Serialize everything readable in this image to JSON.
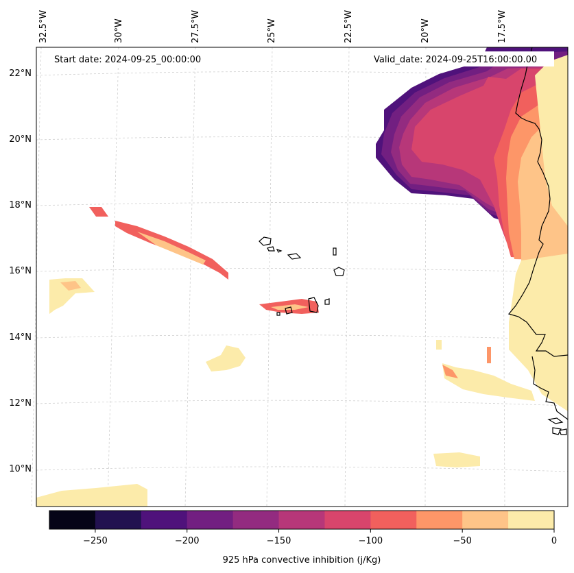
{
  "header": {
    "start_date": "Start date: 2024-09-25_00:00:00",
    "valid_date": "Valid_date: 2024-09-25T16:00:00.00"
  },
  "map": {
    "projection": "conic",
    "longitude_labels": [
      "32.5°W",
      "30°W",
      "27.5°W",
      "25°W",
      "22.5°W",
      "20°W",
      "17.5°W"
    ],
    "latitude_labels": [
      "22°N",
      "20°N",
      "18°N",
      "16°N",
      "14°N",
      "12°N",
      "10°N"
    ],
    "gridlines": true
  },
  "colorbar": {
    "label": "925 hPa convective inhibition (j/Kg)",
    "ticks": [
      "−250",
      "−200",
      "−150",
      "−100",
      "−50",
      "0"
    ],
    "levels": [
      -275,
      -250,
      -225,
      -200,
      -175,
      -150,
      -125,
      -100,
      -75,
      -50,
      -25,
      0
    ],
    "colors": [
      "#050417",
      "#221150",
      "#4f127b",
      "#721f81",
      "#932b80",
      "#b73779",
      "#d8456c",
      "#f1605d",
      "#fd9668",
      "#fec488",
      "#fcebaa"
    ]
  },
  "chart_data": {
    "type": "heatmap",
    "variable": "925 hPa convective inhibition",
    "units": "j/Kg",
    "range": [
      -275,
      0
    ],
    "longitude_range_deg": [
      -33,
      -16
    ],
    "latitude_range_deg": [
      9,
      22.8
    ],
    "features": [
      {
        "region": "coastal Western Sahara / Mauritania",
        "min_value": -225,
        "max_value": 0
      },
      {
        "region": "Cape Verde vicinity",
        "min_value": -100,
        "max_value": 0
      },
      {
        "region": "Senegal / Gambia coast",
        "min_value": -75,
        "max_value": 0
      }
    ]
  }
}
